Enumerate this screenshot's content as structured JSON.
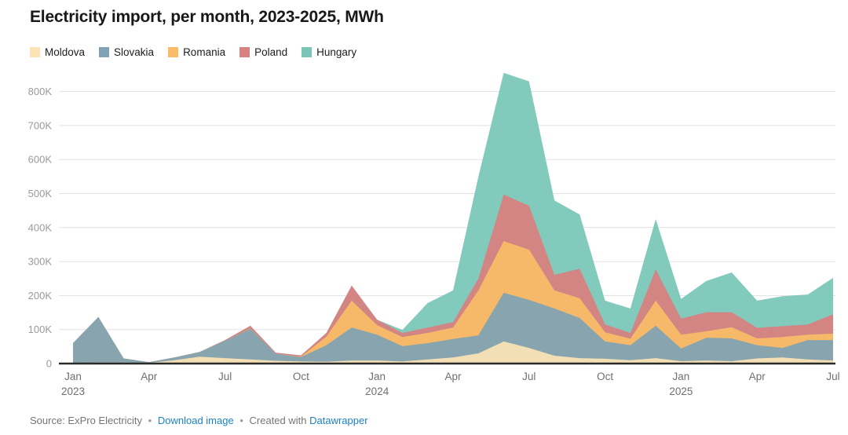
{
  "header": {
    "title": "Electricity import, per month, 2023-2025, MWh"
  },
  "chart_data": {
    "type": "area",
    "stacked": true,
    "unit": "MWh",
    "title": "Electricity import, per month, 2023-2025, MWh",
    "xlabel": "",
    "ylabel": "MWh",
    "ylim": [
      0,
      860000
    ],
    "grid": true,
    "legend_position": "top",
    "x_months": [
      "Jan 2023",
      "Feb 2023",
      "Mar 2023",
      "Apr 2023",
      "May 2023",
      "Jun 2023",
      "Jul 2023",
      "Aug 2023",
      "Sep 2023",
      "Oct 2023",
      "Nov 2023",
      "Dec 2023",
      "Jan 2024",
      "Feb 2024",
      "Mar 2024",
      "Apr 2024",
      "May 2024",
      "Jun 2024",
      "Jul 2024",
      "Aug 2024",
      "Sep 2024",
      "Oct 2024",
      "Nov 2024",
      "Dec 2024",
      "Jan 2025",
      "Feb 2025",
      "Mar 2025",
      "Apr 2025",
      "May 2025",
      "Jun 2025",
      "Jul 2025"
    ],
    "series": [
      {
        "name": "Moldova",
        "color": "#FBE3B6",
        "values": [
          2000,
          3000,
          3000,
          2000,
          10000,
          20000,
          16000,
          12000,
          8000,
          6000,
          5000,
          9000,
          9000,
          6000,
          12000,
          18000,
          30000,
          65000,
          46000,
          23000,
          16000,
          14000,
          10000,
          16000,
          7000,
          9000,
          7000,
          15000,
          18000,
          12000,
          9000
        ]
      },
      {
        "name": "Slovakia",
        "color": "#7FA3B4",
        "values": [
          58000,
          134000,
          12000,
          2000,
          8000,
          14000,
          51000,
          90000,
          21000,
          13000,
          49000,
          97000,
          76000,
          45000,
          48000,
          54000,
          53000,
          143000,
          141000,
          139000,
          118000,
          51000,
          44000,
          95000,
          37000,
          67000,
          67000,
          39000,
          28000,
          57000,
          60000
        ]
      },
      {
        "name": "Romania",
        "color": "#F9BD68",
        "values": [
          0,
          0,
          0,
          0,
          0,
          0,
          0,
          1000,
          0,
          1000,
          25000,
          79000,
          28000,
          27000,
          30000,
          34000,
          132000,
          152000,
          148000,
          53000,
          58000,
          27000,
          19000,
          74000,
          41000,
          19000,
          33000,
          20000,
          32000,
          16000,
          19000
        ]
      },
      {
        "name": "Poland",
        "color": "#D98080",
        "values": [
          0,
          0,
          0,
          0,
          0,
          0,
          2000,
          8000,
          3000,
          4000,
          11000,
          44000,
          16000,
          12000,
          16000,
          16000,
          35000,
          137000,
          129000,
          46000,
          87000,
          23000,
          17000,
          92000,
          47000,
          56000,
          44000,
          31000,
          32000,
          30000,
          57000
        ]
      },
      {
        "name": "Hungary",
        "color": "#79C6B6",
        "values": [
          0,
          0,
          0,
          0,
          0,
          0,
          0,
          0,
          0,
          0,
          0,
          0,
          0,
          9000,
          72000,
          93000,
          300000,
          358000,
          366000,
          219000,
          159000,
          70000,
          72000,
          148000,
          58000,
          92000,
          117000,
          80000,
          88000,
          88000,
          107000
        ]
      }
    ],
    "y_ticks": [
      {
        "value": 0,
        "label": "0"
      },
      {
        "value": 100000,
        "label": "100K"
      },
      {
        "value": 200000,
        "label": "200K"
      },
      {
        "value": 300000,
        "label": "300K"
      },
      {
        "value": 400000,
        "label": "400K"
      },
      {
        "value": 500000,
        "label": "500K"
      },
      {
        "value": 600000,
        "label": "600K"
      },
      {
        "value": 700000,
        "label": "700K"
      },
      {
        "value": 800000,
        "label": "800K"
      }
    ],
    "x_ticks": [
      {
        "index": 0,
        "label": "Jan",
        "year": "2023"
      },
      {
        "index": 3,
        "label": "Apr"
      },
      {
        "index": 6,
        "label": "Jul"
      },
      {
        "index": 9,
        "label": "Oct"
      },
      {
        "index": 12,
        "label": "Jan",
        "year": "2024"
      },
      {
        "index": 15,
        "label": "Apr"
      },
      {
        "index": 18,
        "label": "Jul"
      },
      {
        "index": 21,
        "label": "Oct"
      },
      {
        "index": 24,
        "label": "Jan",
        "year": "2025"
      },
      {
        "index": 27,
        "label": "Apr"
      },
      {
        "index": 30,
        "label": "Jul"
      }
    ]
  },
  "footer": {
    "source_text": "Source: ExPro Electricity",
    "separator": "•",
    "download_label": "Download image",
    "created_with": "Created with",
    "datawrapper_label": "Datawrapper"
  }
}
